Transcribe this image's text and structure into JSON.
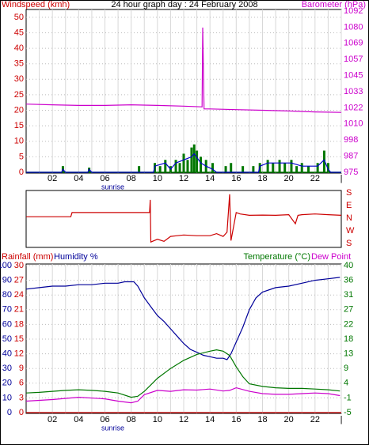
{
  "chart_data": [
    {
      "type": "bar-line",
      "title": "24 hour graph day : 24 February 2008",
      "y_label": "Windspeed (kmh)",
      "y2_label": "Barometer (hPa)",
      "xlim": [
        0,
        24
      ],
      "xticks": [
        {
          "value": 2,
          "label": "02"
        },
        {
          "value": 4,
          "label": "04"
        },
        {
          "value": 6,
          "label": "06"
        },
        {
          "value": 8,
          "label": "08"
        },
        {
          "value": 10,
          "label": "10"
        },
        {
          "value": 12,
          "label": "12"
        },
        {
          "value": 14,
          "label": "14"
        },
        {
          "value": 16,
          "label": "16"
        },
        {
          "value": 18,
          "label": "18"
        },
        {
          "value": 20,
          "label": "20"
        },
        {
          "value": 22,
          "label": "22"
        },
        {
          "value": 24,
          "label": "|"
        }
      ],
      "xminor": [
        1,
        3,
        5,
        7,
        9,
        11,
        13,
        15,
        17,
        19,
        21,
        23
      ],
      "annotation": {
        "text": "sunrise",
        "x": 6.6
      },
      "ylim": [
        0,
        52
      ],
      "yticks": [
        0,
        5,
        10,
        15,
        20,
        25,
        30,
        35,
        40,
        45,
        50
      ],
      "y2lim": [
        975,
        1092
      ],
      "y2ticks": [
        975,
        {
          "value": 986.7,
          "label": "987"
        },
        {
          "value": 998.4,
          "label": "998"
        },
        {
          "value": 1010.1,
          "label": "1010"
        },
        {
          "value": 1021.8,
          "label": "1022"
        },
        {
          "value": 1033.5,
          "label": "1033"
        },
        {
          "value": 1045.2,
          "label": "1045"
        },
        {
          "value": 1056.9,
          "label": "1057"
        },
        {
          "value": 1068.6,
          "label": "1069"
        },
        {
          "value": 1080.3,
          "label": "1080"
        },
        1092
      ],
      "y_color": "#cc0000",
      "y2_color": "#cc00cc",
      "grid": true,
      "series": [
        {
          "kind": "bar",
          "color": "#007700",
          "x": [
            2.8,
            4.8,
            8.6,
            9.8,
            10.2,
            10.6,
            11.0,
            11.4,
            11.7,
            12.0,
            12.3,
            12.6,
            12.8,
            13.0,
            13.3,
            13.7,
            14.2,
            15.2,
            15.6,
            16.5,
            17.3,
            17.8,
            18.4,
            18.8,
            19.3,
            19.7,
            20.2,
            20.6,
            21.0,
            21.5,
            22.2,
            22.7,
            23.0
          ],
          "values": [
            2,
            1.5,
            2,
            3,
            2,
            4,
            2,
            4,
            3,
            6,
            4,
            8,
            9,
            7,
            5,
            4,
            3,
            2,
            3,
            2,
            2,
            3,
            4,
            3,
            4,
            3,
            4,
            2,
            3,
            2,
            3,
            7,
            3
          ]
        },
        {
          "kind": "line",
          "color": "#0000cc",
          "x": [
            0,
            2.7,
            2.8,
            3.0,
            4.7,
            4.8,
            5.0,
            9.7,
            9.8,
            10.6,
            11.0,
            11.4,
            12.0,
            12.6,
            12.8,
            13.3,
            13.7,
            14.2,
            14.5,
            17.7,
            17.8,
            18.4,
            19.3,
            20.2,
            21.0,
            22.2,
            22.7,
            23.0,
            23.2,
            24
          ],
          "values": [
            0,
            0,
            1,
            0,
            0,
            1,
            0,
            0,
            2,
            3,
            1,
            3,
            4,
            5,
            6,
            3,
            2,
            1,
            0,
            0,
            2,
            3,
            3,
            3,
            2,
            2,
            4,
            1,
            0,
            0
          ]
        },
        {
          "kind": "line",
          "axis": "y2",
          "color": "#cc00cc",
          "x": [
            0,
            2,
            4,
            6,
            8,
            10,
            12,
            13.4,
            13.45,
            13.55,
            14,
            16,
            18,
            20,
            22,
            24
          ],
          "values": [
            1024.5,
            1024,
            1023.5,
            1023.5,
            1024,
            1023.5,
            1023,
            1022.5,
            1080,
            1021,
            1021,
            1020.5,
            1020,
            1019.5,
            1018.8,
            1018.5
          ]
        }
      ]
    },
    {
      "type": "line",
      "xlim": [
        0,
        24
      ],
      "xticks": [
        {
          "value": 2,
          "label": "02"
        },
        {
          "value": 4,
          "label": "04"
        },
        {
          "value": 6,
          "label": "06"
        },
        {
          "value": 8,
          "label": "08"
        },
        {
          "value": 10,
          "label": "10"
        },
        {
          "value": 12,
          "label": "12"
        },
        {
          "value": 14,
          "label": "14"
        },
        {
          "value": 16,
          "label": "16"
        },
        {
          "value": 18,
          "label": "18"
        },
        {
          "value": 20,
          "label": "20"
        },
        {
          "value": 22,
          "label": "22"
        },
        {
          "value": 24,
          "label": "|"
        }
      ],
      "ylim": [
        -180,
        180
      ],
      "yticks": [
        {
          "value": 180,
          "label": "S"
        },
        {
          "value": 90,
          "label": "E"
        },
        {
          "value": 0,
          "label": "N"
        },
        {
          "value": -90,
          "label": "W"
        },
        {
          "value": -180,
          "label": "S"
        }
      ],
      "y_color": "#cc0000",
      "series": [
        {
          "kind": "line",
          "color": "#cc0000",
          "x": [
            0,
            3.4,
            3.5,
            9.4,
            9.45,
            9.5,
            10,
            10.5,
            11,
            11.5,
            12,
            13,
            14,
            14.5,
            15,
            15.3,
            15.5,
            15.6,
            15.8,
            16,
            16.3,
            17,
            18,
            19,
            20,
            20.5,
            20.7,
            21,
            22,
            23,
            24
          ],
          "values": [
            10,
            10,
            40,
            40,
            130,
            -170,
            -150,
            -165,
            -130,
            -125,
            -120,
            -125,
            -125,
            -110,
            -130,
            -100,
            170,
            -160,
            -60,
            40,
            30,
            20,
            22,
            20,
            25,
            -40,
            20,
            25,
            30,
            25,
            20
          ]
        }
      ]
    },
    {
      "type": "line",
      "xlim": [
        0,
        24
      ],
      "xticks": [
        {
          "value": 2,
          "label": "02"
        },
        {
          "value": 4,
          "label": "04"
        },
        {
          "value": 6,
          "label": "06"
        },
        {
          "value": 8,
          "label": "08"
        },
        {
          "value": 10,
          "label": "10"
        },
        {
          "value": 12,
          "label": "12"
        },
        {
          "value": 14,
          "label": "14"
        },
        {
          "value": 16,
          "label": "16"
        },
        {
          "value": 18,
          "label": "18"
        },
        {
          "value": 20,
          "label": "20"
        },
        {
          "value": 22,
          "label": "22"
        },
        {
          "value": 24,
          "label": "|"
        }
      ],
      "xminor": [
        1,
        3,
        5,
        7,
        9,
        11,
        13,
        15,
        17,
        19,
        21,
        23
      ],
      "annotation": {
        "text": "sunrise",
        "x": 6.6
      },
      "ylim": [
        0,
        100
      ],
      "yticks": [
        0,
        10,
        20,
        30,
        40,
        50,
        60,
        70,
        80,
        90,
        100
      ],
      "y_color": "#000099",
      "y3lim": [
        0,
        30
      ],
      "y3ticks": [
        0,
        3,
        6,
        9,
        12,
        15,
        18,
        21,
        24,
        27,
        30
      ],
      "y3_color": "#cc0000",
      "y2lim": [
        -5,
        40
      ],
      "y2ticks": [
        -5,
        {
          "value": -0.5,
          "label": "-1"
        },
        4,
        {
          "value": 8.5,
          "label": "9"
        },
        13,
        {
          "value": 17.5,
          "label": "18"
        },
        22,
        {
          "value": 26.5,
          "label": "27"
        },
        31,
        {
          "value": 35.5,
          "label": "36"
        },
        40
      ],
      "y2_color": "#007700",
      "grid": true,
      "series": [
        {
          "name": "Rainfall (mm)",
          "kind": "line",
          "axis": "y3",
          "color": "#cc0000",
          "x": [
            0,
            24
          ],
          "values": [
            0,
            0
          ]
        },
        {
          "name": "Humidity %",
          "kind": "line",
          "color": "#000099",
          "x": [
            0,
            1,
            2,
            3,
            4,
            5,
            6,
            7,
            7.5,
            8.2,
            8.5,
            9,
            9.5,
            10,
            10.5,
            11,
            11.5,
            12,
            12.5,
            13,
            13.5,
            14,
            14.5,
            15,
            15.3,
            15.6,
            16,
            16.5,
            17,
            17.5,
            18,
            19,
            20,
            21,
            22,
            23,
            23.9
          ],
          "values": [
            84,
            85,
            86,
            86,
            87,
            87,
            88,
            88,
            89,
            89,
            86,
            78,
            72,
            66,
            62,
            57,
            52,
            47,
            43,
            41,
            39,
            38,
            37,
            37,
            36,
            40,
            48,
            58,
            70,
            78,
            82,
            85,
            86,
            88,
            90,
            91,
            92
          ]
        },
        {
          "name": "Temperature (°C)",
          "kind": "line",
          "axis": "y2",
          "color": "#007700",
          "x": [
            0,
            1,
            2,
            3,
            4,
            5,
            6,
            7,
            8,
            8.5,
            9,
            9.5,
            10,
            11,
            12,
            13,
            14,
            14.5,
            15,
            15.5,
            16,
            16.5,
            17,
            18,
            19,
            20,
            21,
            22,
            23,
            23.9
          ],
          "values": [
            1.0,
            1.2,
            1.5,
            1.8,
            2.0,
            1.8,
            1.5,
            1.0,
            -0.3,
            0.0,
            1.5,
            3.5,
            5.5,
            8.5,
            11,
            12.8,
            13.8,
            14.2,
            13.8,
            12.5,
            9,
            6,
            3.8,
            3.0,
            2.6,
            2.4,
            2.4,
            2.2,
            2.0,
            1.6
          ]
        },
        {
          "name": "Dew Point",
          "kind": "line",
          "axis": "y2",
          "color": "#cc00cc",
          "x": [
            0,
            2,
            4,
            6,
            7,
            8,
            8.5,
            9,
            10,
            11,
            12,
            13,
            14,
            15,
            15.5,
            16,
            17,
            18,
            19,
            20,
            21,
            22,
            23,
            23.9
          ],
          "values": [
            -1.5,
            -1.0,
            -0.3,
            -0.8,
            -1.5,
            -2.0,
            -1.5,
            0.5,
            1.8,
            1.5,
            2.0,
            1.9,
            2.2,
            1.6,
            1.8,
            2.6,
            1.5,
            0.8,
            0.6,
            0.6,
            0.8,
            1.0,
            0.8,
            0.2
          ]
        }
      ]
    }
  ]
}
